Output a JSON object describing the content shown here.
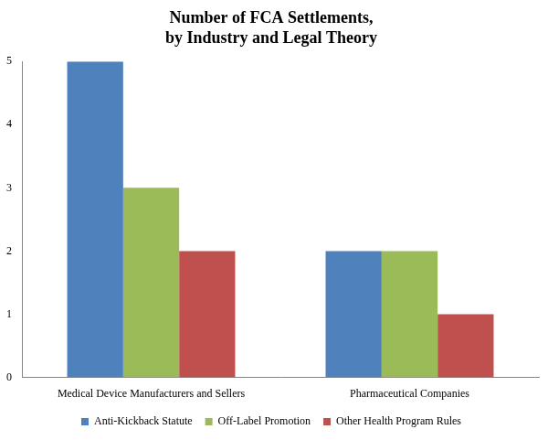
{
  "chart_data": {
    "type": "bar",
    "title": [
      "Number of FCA Settlements,",
      "by Industry and Legal Theory"
    ],
    "categories": [
      "Medical Device Manufacturers and Sellers",
      "Pharmaceutical Companies"
    ],
    "series": [
      {
        "name": "Anti-Kickback Statute",
        "color": "#4f81bd",
        "values": [
          5,
          2
        ]
      },
      {
        "name": "Off-Label Promotion",
        "color": "#9bbb59",
        "values": [
          3,
          2
        ]
      },
      {
        "name": "Other Health Program Rules",
        "color": "#c0504d",
        "values": [
          2,
          1
        ]
      }
    ],
    "ylim": [
      0,
      5
    ],
    "yticks": [
      0,
      1,
      2,
      3,
      4,
      5
    ],
    "grid": false,
    "legend": "bottom"
  }
}
